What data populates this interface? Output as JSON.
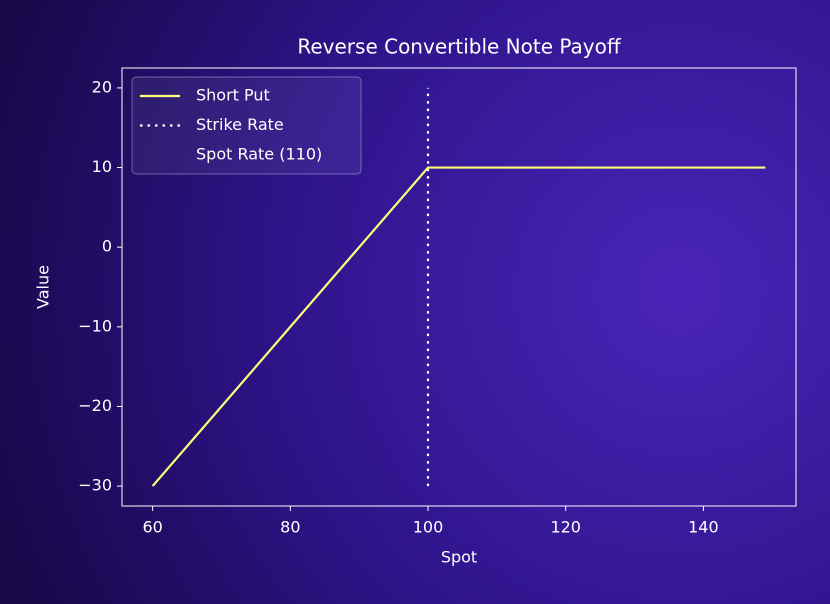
{
  "chart_data": {
    "type": "line",
    "title": "Reverse Convertible Note Payoff",
    "x_label": "Spot",
    "y_label": "Value",
    "series": [
      {
        "name": "Short Put",
        "color": "#ffff7a",
        "dash": "solid",
        "x": [
          60,
          100,
          149
        ],
        "values": [
          -30,
          10,
          10
        ]
      },
      {
        "name": "Strike Rate",
        "color": "#ffffff",
        "dash": "dotted",
        "x": [
          100,
          100
        ],
        "values": [
          -30,
          20
        ]
      },
      {
        "name": "Spot Rate (110)",
        "color": "none",
        "dash": "none"
      }
    ],
    "xlim": [
      55.55,
      153.45
    ],
    "xticks": [
      60,
      80,
      100,
      120,
      140
    ],
    "ylim": [
      -32.5,
      22.5
    ],
    "yticks": [
      {
        "value": -30,
        "label": "−30"
      },
      {
        "value": -20,
        "label": "−20"
      },
      {
        "value": -10,
        "label": "−10"
      },
      0,
      10,
      20
    ],
    "grid": false,
    "legend": "upper left"
  }
}
